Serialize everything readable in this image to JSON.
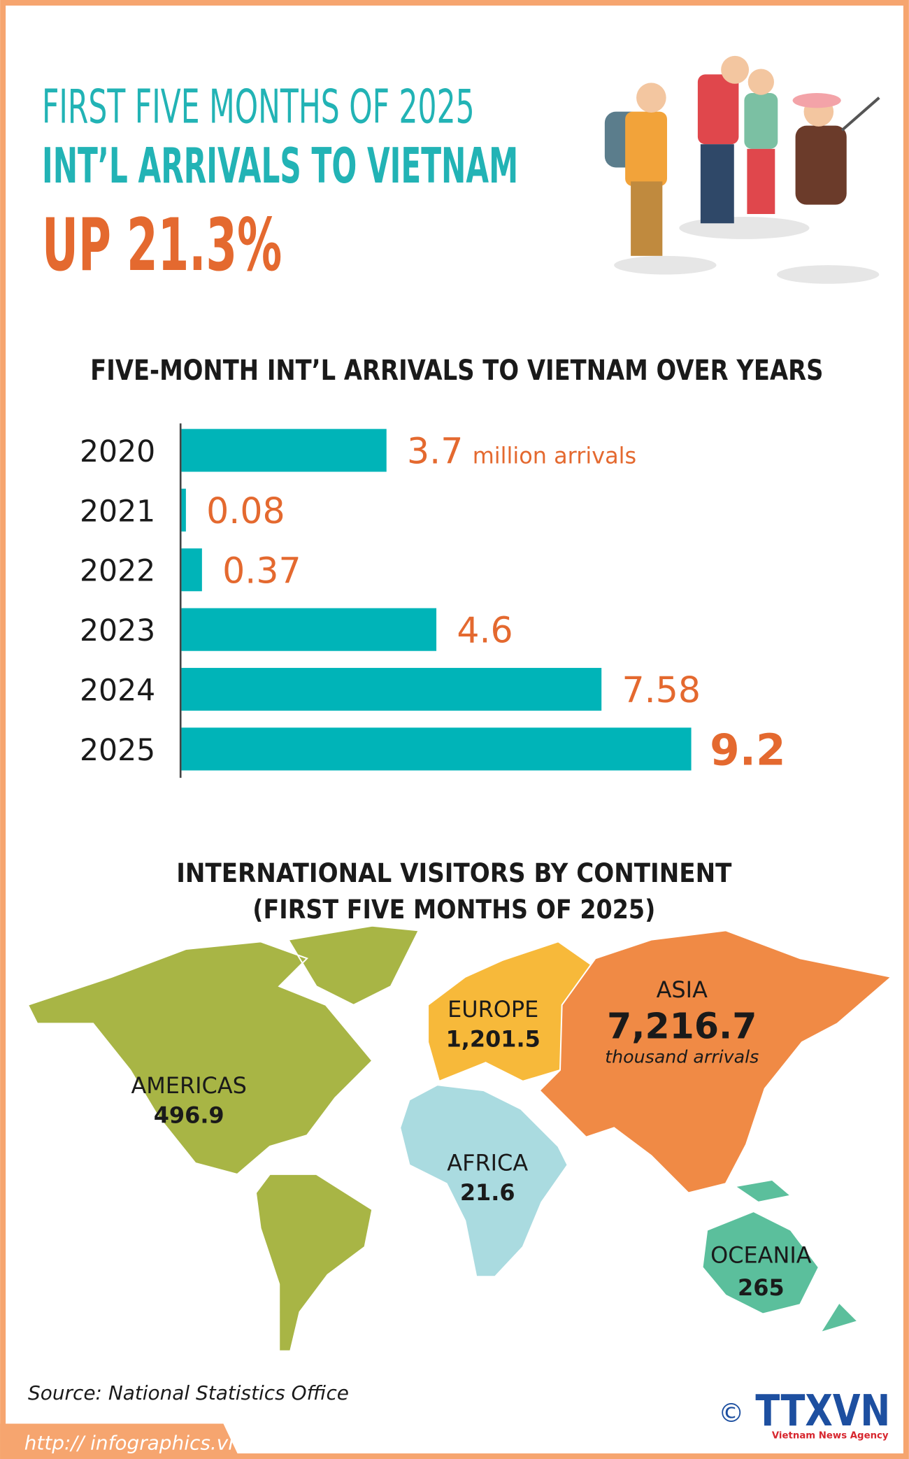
{
  "header": {
    "line1": "FIRST FIVE MONTHS OF 2025",
    "line2": "INT’L ARRIVALS TO VIETNAM",
    "line3": "UP 21.3%"
  },
  "chart_data": {
    "type": "bar",
    "orientation": "horizontal",
    "title": "FIVE-MONTH INT’L ARRIVALS TO VIETNAM OVER YEARS",
    "categories": [
      "2020",
      "2021",
      "2022",
      "2023",
      "2024",
      "2025"
    ],
    "values": [
      3.7,
      0.08,
      0.37,
      4.6,
      7.58,
      9.2
    ],
    "unit": "million arrivals",
    "color": "#00b4b8",
    "label_color": "#e4692f"
  },
  "map": {
    "title_lines": [
      "INTERNATIONAL VISITORS BY CONTINENT",
      "(FIRST FIVE MONTHS OF 2025)"
    ],
    "unit": "thousand arrivals",
    "regions": [
      {
        "name": "AMERICAS",
        "value": "496.9"
      },
      {
        "name": "EUROPE",
        "value": "1,201.5"
      },
      {
        "name": "ASIA",
        "value": "7,216.7"
      },
      {
        "name": "AFRICA",
        "value": "21.6"
      },
      {
        "name": "OCEANIA",
        "value": "265"
      }
    ]
  },
  "footer": {
    "source": "Source: National Statistics Office",
    "url": "http:// infographics.vn",
    "copyright": "©",
    "logo": "TTXVN",
    "logo_subtitle": "Vietnam News Agency"
  }
}
